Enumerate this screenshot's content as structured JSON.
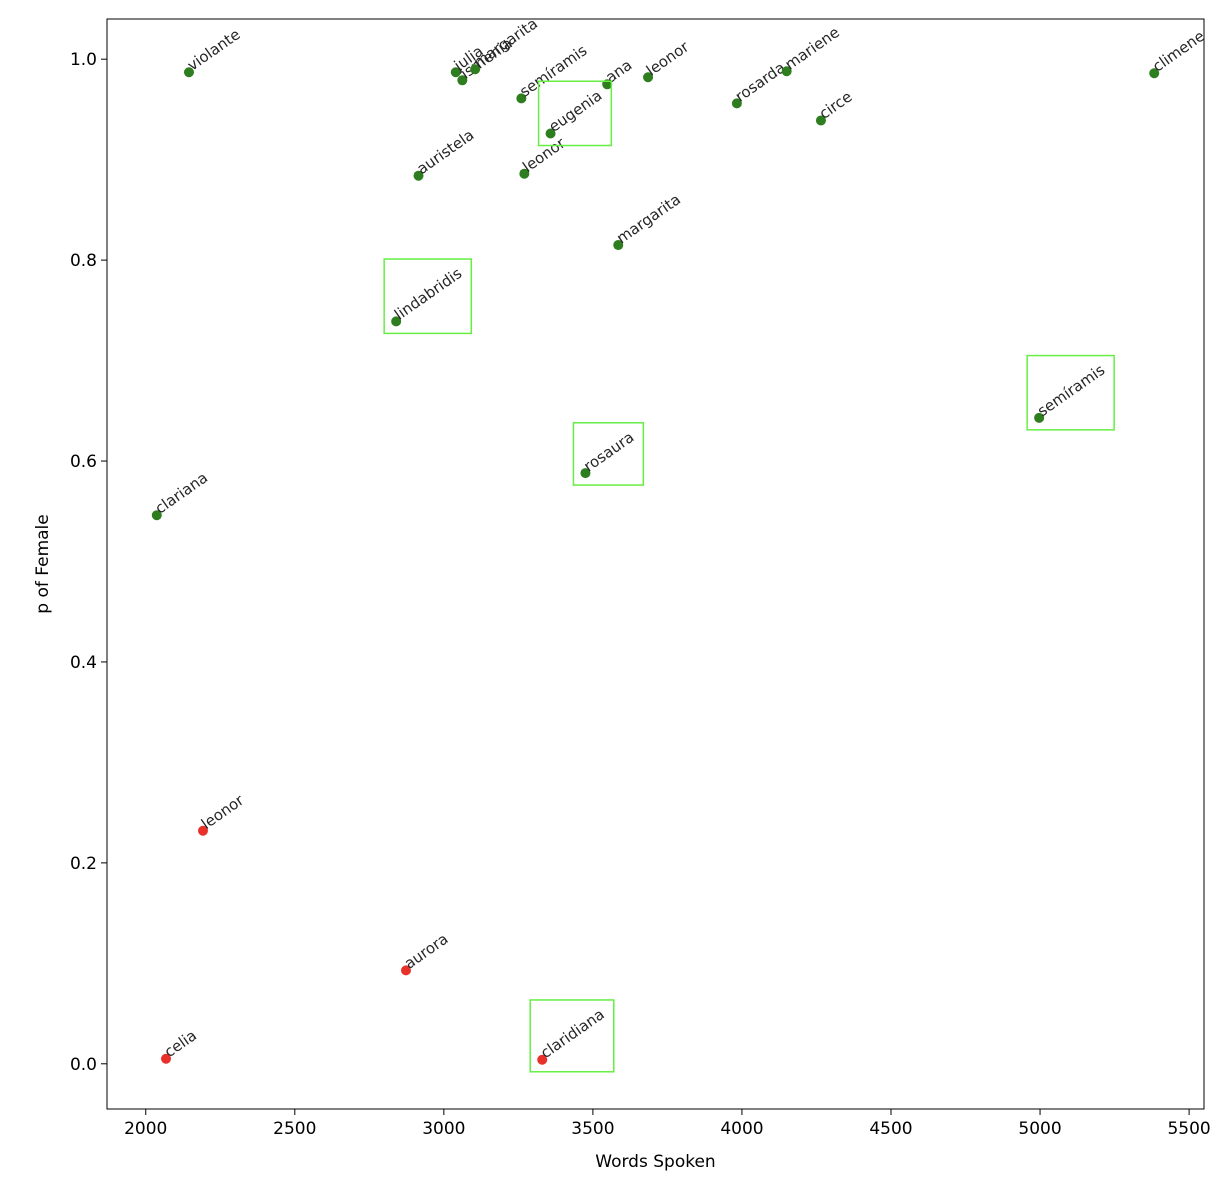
{
  "chart_data": {
    "type": "scatter",
    "xlabel": "Words Spoken",
    "ylabel": "p of Female",
    "xlim": [
      1870,
      5550
    ],
    "ylim": [
      -0.045,
      1.04
    ],
    "x_ticks": [
      2000,
      2500,
      3000,
      3500,
      4000,
      4500,
      5000,
      5500
    ],
    "y_ticks": [
      0.0,
      0.2,
      0.4,
      0.6,
      0.8,
      1.0
    ],
    "grid": false,
    "colors": {
      "female": "#2e7d1e",
      "male": "#e8312a",
      "highlight": "#66ee44"
    },
    "points": [
      {
        "label": "violante",
        "x": 2145,
        "y": 0.987,
        "color": "green"
      },
      {
        "label": "julia",
        "x": 3040,
        "y": 0.987,
        "color": "green"
      },
      {
        "label": "ismenia",
        "x": 3062,
        "y": 0.979,
        "color": "green"
      },
      {
        "label": "margarita",
        "x": 3105,
        "y": 0.99,
        "color": "green"
      },
      {
        "label": "semíramis",
        "x": 3260,
        "y": 0.961,
        "color": "green"
      },
      {
        "label": "ana",
        "x": 3548,
        "y": 0.975,
        "color": "green"
      },
      {
        "label": "leonor",
        "x": 3685,
        "y": 0.982,
        "color": "green"
      },
      {
        "label": "rosarda",
        "x": 3983,
        "y": 0.956,
        "color": "green"
      },
      {
        "label": "mariene",
        "x": 4150,
        "y": 0.988,
        "color": "green"
      },
      {
        "label": "circe",
        "x": 4265,
        "y": 0.939,
        "color": "green"
      },
      {
        "label": "climene",
        "x": 5383,
        "y": 0.986,
        "color": "green"
      },
      {
        "label": "eugenia",
        "x": 3358,
        "y": 0.926,
        "color": "green",
        "highlight": true
      },
      {
        "label": "auristela",
        "x": 2915,
        "y": 0.884,
        "color": "green"
      },
      {
        "label": "leonor",
        "x": 3270,
        "y": 0.886,
        "color": "green"
      },
      {
        "label": "margarita",
        "x": 3585,
        "y": 0.815,
        "color": "green"
      },
      {
        "label": "lindabridis",
        "x": 2840,
        "y": 0.739,
        "color": "green",
        "highlight": true
      },
      {
        "label": "semíramis",
        "x": 4997,
        "y": 0.643,
        "color": "green",
        "highlight": true
      },
      {
        "label": "rosaura",
        "x": 3475,
        "y": 0.588,
        "color": "green",
        "highlight": true
      },
      {
        "label": "clariana",
        "x": 2037,
        "y": 0.546,
        "color": "green"
      },
      {
        "label": "leonor",
        "x": 2192,
        "y": 0.232,
        "color": "red"
      },
      {
        "label": "aurora",
        "x": 2873,
        "y": 0.093,
        "color": "red"
      },
      {
        "label": "celia",
        "x": 2068,
        "y": 0.005,
        "color": "red"
      },
      {
        "label": "claridiana",
        "x": 3330,
        "y": 0.004,
        "color": "red",
        "highlight": true
      }
    ]
  }
}
